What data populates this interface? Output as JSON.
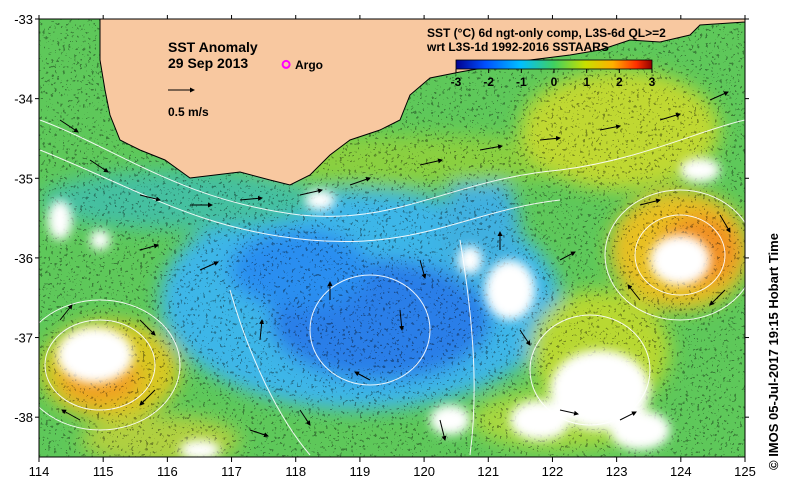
{
  "map": {
    "title": "SST Anomaly",
    "date": "29 Sep 2013",
    "argo_label": "Argo",
    "velocity_scale_label": "0.5 m/s",
    "product_line1": "SST (°C) 6d ngt-only comp, L3S-6d QL>=2",
    "product_line2": "wrt L3S-1d 1992-2016 SSTAARS",
    "credit": "© IMOS 05-Jul-2017 19:15 Hobart Time",
    "colors": {
      "land": "#f8c8a0",
      "no_data": "#ffffff",
      "argo_marker": "#ff00ff"
    },
    "x_ticks": [
      "114",
      "115",
      "116",
      "117",
      "118",
      "119",
      "120",
      "121",
      "122",
      "123",
      "124",
      "125"
    ],
    "y_ticks": [
      "-33",
      "-34",
      "-35",
      "-36",
      "-37",
      "-38"
    ],
    "lon_range": [
      114,
      125
    ],
    "lat_range": [
      -38.5,
      -33
    ],
    "colorbar": {
      "min": -3,
      "max": 3,
      "tick_labels": [
        "-3",
        "-2",
        "-1",
        "0",
        "1",
        "2",
        "3"
      ]
    },
    "argo_location": {
      "lon": 117.85,
      "lat": -33.57
    }
  }
}
